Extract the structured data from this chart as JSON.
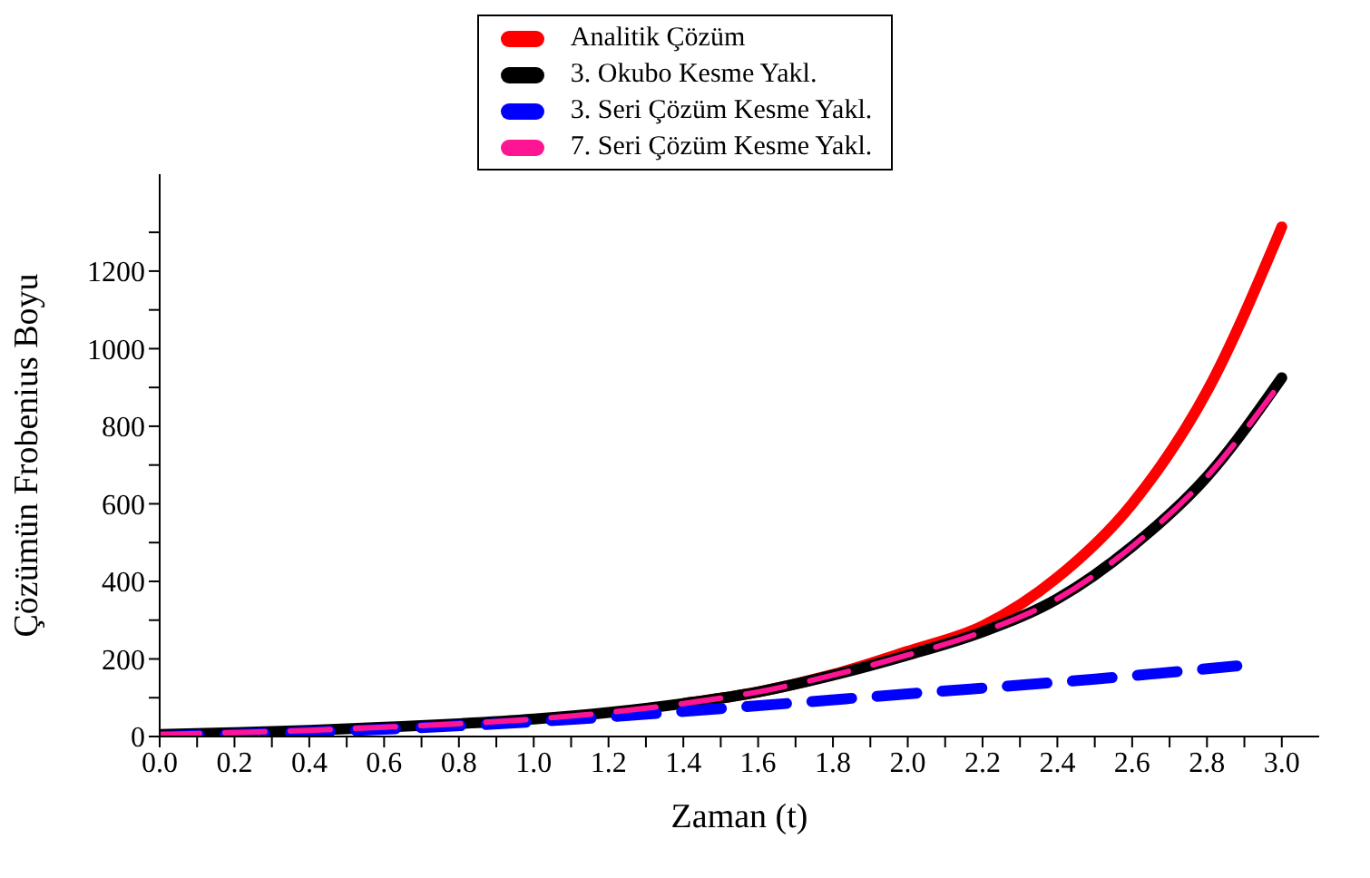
{
  "chart_data": {
    "type": "line",
    "xlabel": "Zaman (t)",
    "ylabel": "Çözümün Frobenius Boyu",
    "legend": "top",
    "xlim": [
      0,
      3.1
    ],
    "ylim": [
      0,
      1450
    ],
    "xticks": [
      {
        "value": 0,
        "label": "0.0"
      },
      {
        "value": 0.1,
        "label": null
      },
      0.2,
      {
        "value": 0.3,
        "label": null
      },
      0.4,
      {
        "value": 0.5,
        "label": null
      },
      0.6,
      {
        "value": 0.7,
        "label": null
      },
      0.8,
      {
        "value": 0.9,
        "label": null
      },
      {
        "value": 1,
        "label": "1.0"
      },
      {
        "value": 1.1,
        "label": null
      },
      1.2,
      {
        "value": 1.3,
        "label": null
      },
      1.4,
      {
        "value": 1.5,
        "label": null
      },
      1.6,
      {
        "value": 1.7,
        "label": null
      },
      1.8,
      {
        "value": 1.9,
        "label": null
      },
      {
        "value": 2,
        "label": "2.0"
      },
      {
        "value": 2.1,
        "label": null
      },
      2.2,
      {
        "value": 2.3,
        "label": null
      },
      2.4,
      {
        "value": 2.5,
        "label": null
      },
      2.6,
      {
        "value": 2.7,
        "label": null
      },
      2.8,
      {
        "value": 2.9,
        "label": null
      },
      {
        "value": 3,
        "label": "3.0"
      }
    ],
    "yticks": [
      0,
      {
        "value": 100,
        "label": null
      },
      200,
      {
        "value": 300,
        "label": null
      },
      400,
      {
        "value": 500,
        "label": null
      },
      600,
      {
        "value": 700,
        "label": null
      },
      800,
      {
        "value": 900,
        "label": null
      },
      1000,
      {
        "value": 1100,
        "label": null
      },
      1200,
      {
        "value": 1300,
        "label": null
      }
    ],
    "series": [
      {
        "name": "Analitik Çözüm",
        "color": "#ff0000",
        "line_style": "solid",
        "x": [
          1.4,
          1.6,
          1.8,
          2.0,
          2.2,
          2.4,
          2.6,
          2.8,
          3.0
        ],
        "values": [
          85,
          115,
          160,
          220,
          285,
          410,
          600,
          890,
          1314
        ]
      },
      {
        "name": "3. Okubo Kesme Yakl.",
        "color": "#000000",
        "line_style": "solid",
        "x": [
          0,
          0.2,
          0.4,
          0.6,
          0.8,
          1.0,
          1.2,
          1.4,
          1.6,
          1.8,
          2.0,
          2.2,
          2.4,
          2.6,
          2.8,
          3.0
        ],
        "values": [
          5,
          10,
          16,
          24,
          33,
          45,
          62,
          85,
          115,
          158,
          210,
          270,
          355,
          490,
          670,
          925
        ]
      },
      {
        "name": "3. Seri Çözüm Kesme Yakl.",
        "color": "#0000ff",
        "line_style": "dashed",
        "x": [
          0,
          0.5,
          1.0,
          1.5,
          2.0,
          2.5,
          2.88
        ],
        "values": [
          0,
          15,
          38,
          72,
          110,
          148,
          182
        ]
      },
      {
        "name": "7. Seri Çözüm Kesme Yakl.",
        "color": "#ff1493",
        "line_style": "dashed",
        "x": [
          0,
          0.2,
          0.4,
          0.6,
          0.8,
          1.0,
          1.2,
          1.4,
          1.6,
          1.8,
          2.0,
          2.2,
          2.4,
          2.6,
          2.8,
          2.98
        ],
        "values": [
          5,
          10,
          16,
          24,
          33,
          45,
          62,
          85,
          115,
          158,
          210,
          270,
          355,
          490,
          670,
          890
        ]
      }
    ]
  }
}
